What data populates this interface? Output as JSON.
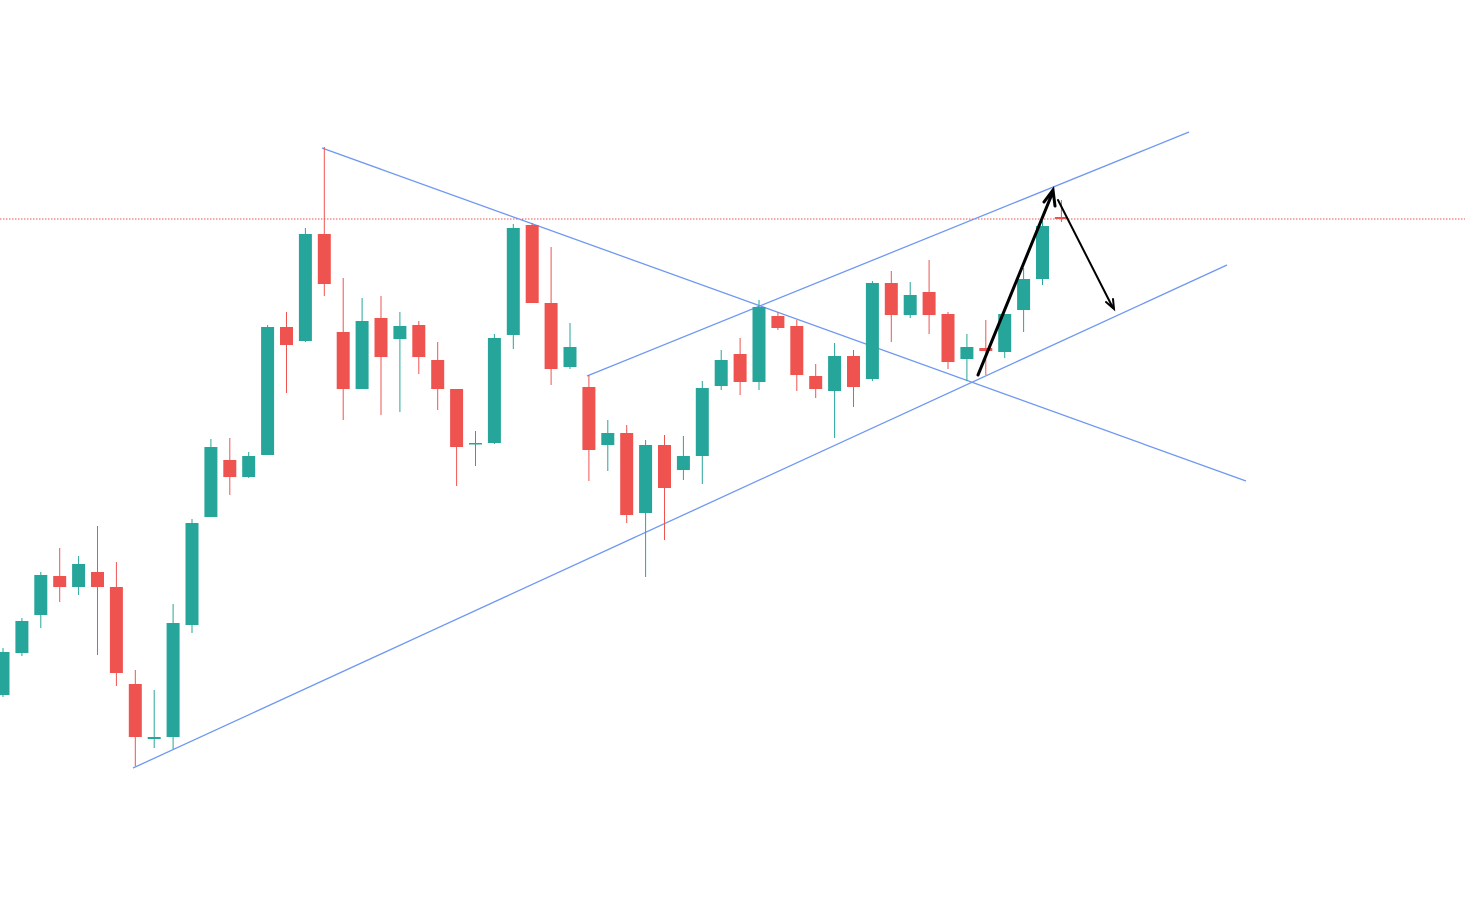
{
  "chart_data": {
    "type": "candlestick",
    "up_color": "#26a69a",
    "down_color": "#ef5350",
    "price_line": true,
    "ylim": [
      0,
      911
    ],
    "open": [
      216,
      258,
      296,
      335,
      324,
      339,
      324,
      227,
      172,
      174,
      286,
      394,
      451,
      434,
      456,
      584,
      570,
      677,
      579,
      522,
      593,
      572,
      586,
      551,
      522,
      467,
      468,
      576,
      686,
      608,
      544,
      524,
      466,
      478,
      398,
      466,
      441,
      455,
      525,
      557,
      529,
      595,
      585,
      535,
      520,
      555,
      532,
      628,
      596,
      619,
      597,
      552,
      563,
      559,
      601,
      632,
      694
    ],
    "high": [
      263,
      293,
      339,
      363,
      355,
      385,
      349,
      241,
      221,
      307,
      392,
      472,
      473,
      459,
      586,
      599,
      683,
      764,
      633,
      613,
      615,
      599,
      590,
      569,
      522,
      480,
      577,
      687,
      688,
      664,
      588,
      536,
      491,
      486,
      471,
      476,
      475,
      530,
      561,
      573,
      611,
      599,
      591,
      547,
      568,
      561,
      630,
      640,
      629,
      651,
      599,
      577,
      591,
      597,
      643,
      690,
      711
    ],
    "low": [
      214,
      255,
      283,
      309,
      316,
      256,
      225,
      145,
      163,
      162,
      278,
      394,
      416,
      433,
      456,
      518,
      569,
      615,
      491,
      522,
      496,
      499,
      537,
      501,
      425,
      445,
      467,
      562,
      608,
      526,
      542,
      430,
      440,
      388,
      334,
      371,
      431,
      427,
      521,
      516,
      521,
      581,
      520,
      513,
      473,
      504,
      530,
      569,
      593,
      577,
      542,
      530,
      536,
      553,
      579,
      626,
      689
    ],
    "close": [
      259,
      290,
      336,
      324,
      347,
      324,
      238,
      174,
      174,
      288,
      388,
      464,
      434,
      455,
      584,
      566,
      677,
      627,
      522,
      590,
      554,
      585,
      554,
      522,
      464,
      468,
      573,
      683,
      608,
      542,
      564,
      461,
      478,
      396,
      466,
      423,
      455,
      523,
      551,
      529,
      604,
      583,
      536,
      522,
      555,
      524,
      628,
      596,
      616,
      596,
      549,
      564,
      560,
      597,
      632,
      685,
      692
    ]
  }
}
